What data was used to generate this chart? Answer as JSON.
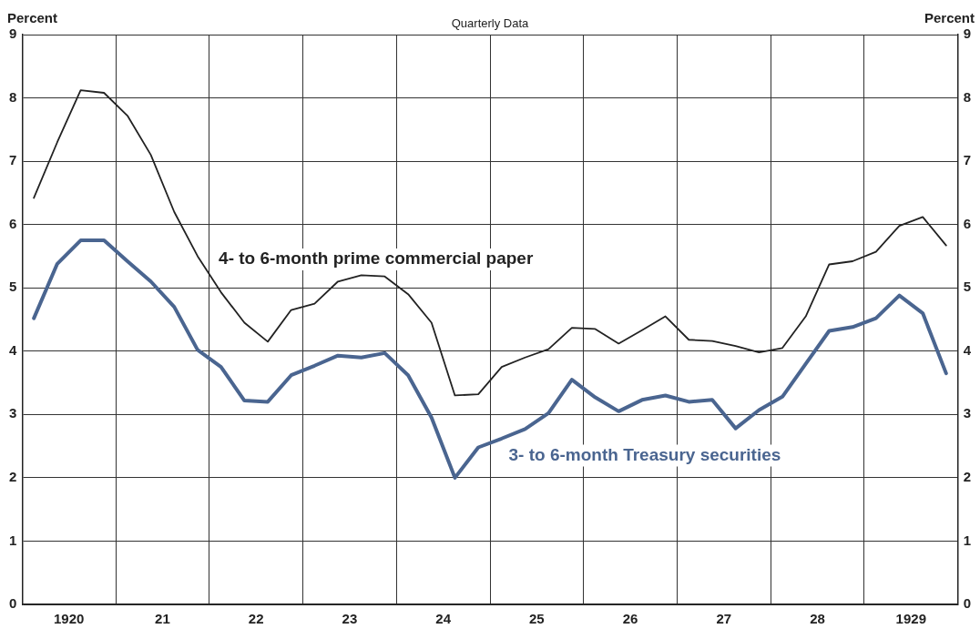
{
  "chart_data": {
    "type": "line",
    "subtitle": "Quarterly Data",
    "ylabel": "Percent",
    "y2label": "Percent",
    "x": [
      1919.625,
      1919.875,
      1920.125,
      1920.375,
      1920.625,
      1920.875,
      1921.125,
      1921.375,
      1921.625,
      1921.875,
      1922.125,
      1922.375,
      1922.625,
      1922.875,
      1923.125,
      1923.375,
      1923.625,
      1923.875,
      1924.125,
      1924.375,
      1924.625,
      1924.875,
      1925.125,
      1925.375,
      1925.625,
      1925.875,
      1926.125,
      1926.375,
      1926.625,
      1926.875,
      1927.125,
      1927.375,
      1927.625,
      1927.875,
      1928.125,
      1928.375,
      1928.625,
      1928.875,
      1929.125,
      1929.375
    ],
    "series": [
      {
        "name": "4- to 6-month prime commercial paper",
        "color": "#222222",
        "values": [
          6.42,
          7.3,
          8.12,
          8.08,
          7.72,
          7.1,
          6.2,
          5.5,
          4.93,
          4.45,
          4.15,
          4.65,
          4.75,
          5.1,
          5.2,
          5.18,
          4.9,
          4.45,
          3.3,
          3.32,
          3.75,
          3.9,
          4.03,
          4.37,
          4.35,
          4.12,
          4.33,
          4.55,
          4.18,
          4.16,
          4.08,
          3.98,
          4.05,
          4.55,
          5.37,
          5.42,
          5.57,
          5.98,
          6.12,
          5.67
        ]
      },
      {
        "name": "3- to 6-month Treasury securities",
        "color": "#4a6590",
        "values": [
          4.52,
          5.38,
          5.75,
          5.75,
          5.42,
          5.1,
          4.7,
          4.02,
          3.75,
          3.22,
          3.2,
          3.62,
          3.77,
          3.93,
          3.9,
          3.97,
          3.62,
          2.95,
          2.0,
          2.48,
          2.62,
          2.77,
          3.02,
          3.55,
          3.27,
          3.05,
          3.23,
          3.3,
          3.2,
          3.23,
          2.78,
          3.07,
          3.28,
          3.8,
          4.32,
          4.38,
          4.52,
          4.88,
          4.6,
          3.65
        ]
      }
    ],
    "xlim": [
      1919.5,
      1929.5
    ],
    "xticks": [
      {
        "value": 1920,
        "label": "1920"
      },
      {
        "value": 1920.5,
        "label": null
      },
      {
        "value": 1921,
        "label": "21"
      },
      {
        "value": 1921.5,
        "label": null
      },
      {
        "value": 1922,
        "label": "22"
      },
      {
        "value": 1922.5,
        "label": null
      },
      {
        "value": 1923,
        "label": "23"
      },
      {
        "value": 1923.5,
        "label": null
      },
      {
        "value": 1924,
        "label": "24"
      },
      {
        "value": 1924.5,
        "label": null
      },
      {
        "value": 1925,
        "label": "25"
      },
      {
        "value": 1925.5,
        "label": null
      },
      {
        "value": 1926,
        "label": "26"
      },
      {
        "value": 1926.5,
        "label": null
      },
      {
        "value": 1927,
        "label": "27"
      },
      {
        "value": 1927.5,
        "label": null
      },
      {
        "value": 1928,
        "label": "28"
      },
      {
        "value": 1928.5,
        "label": null
      },
      {
        "value": 1929,
        "label": "1929"
      }
    ],
    "ylim": [
      0,
      9
    ],
    "yticks": [
      0,
      1,
      2,
      3,
      4,
      5,
      6,
      7,
      8,
      9
    ],
    "y2lim": [
      0,
      9
    ],
    "y2ticks": [
      0,
      1,
      2,
      3,
      4,
      5,
      6,
      7,
      8,
      9
    ],
    "grid": true,
    "legend": false,
    "marker": "none",
    "line_style": "solid"
  }
}
